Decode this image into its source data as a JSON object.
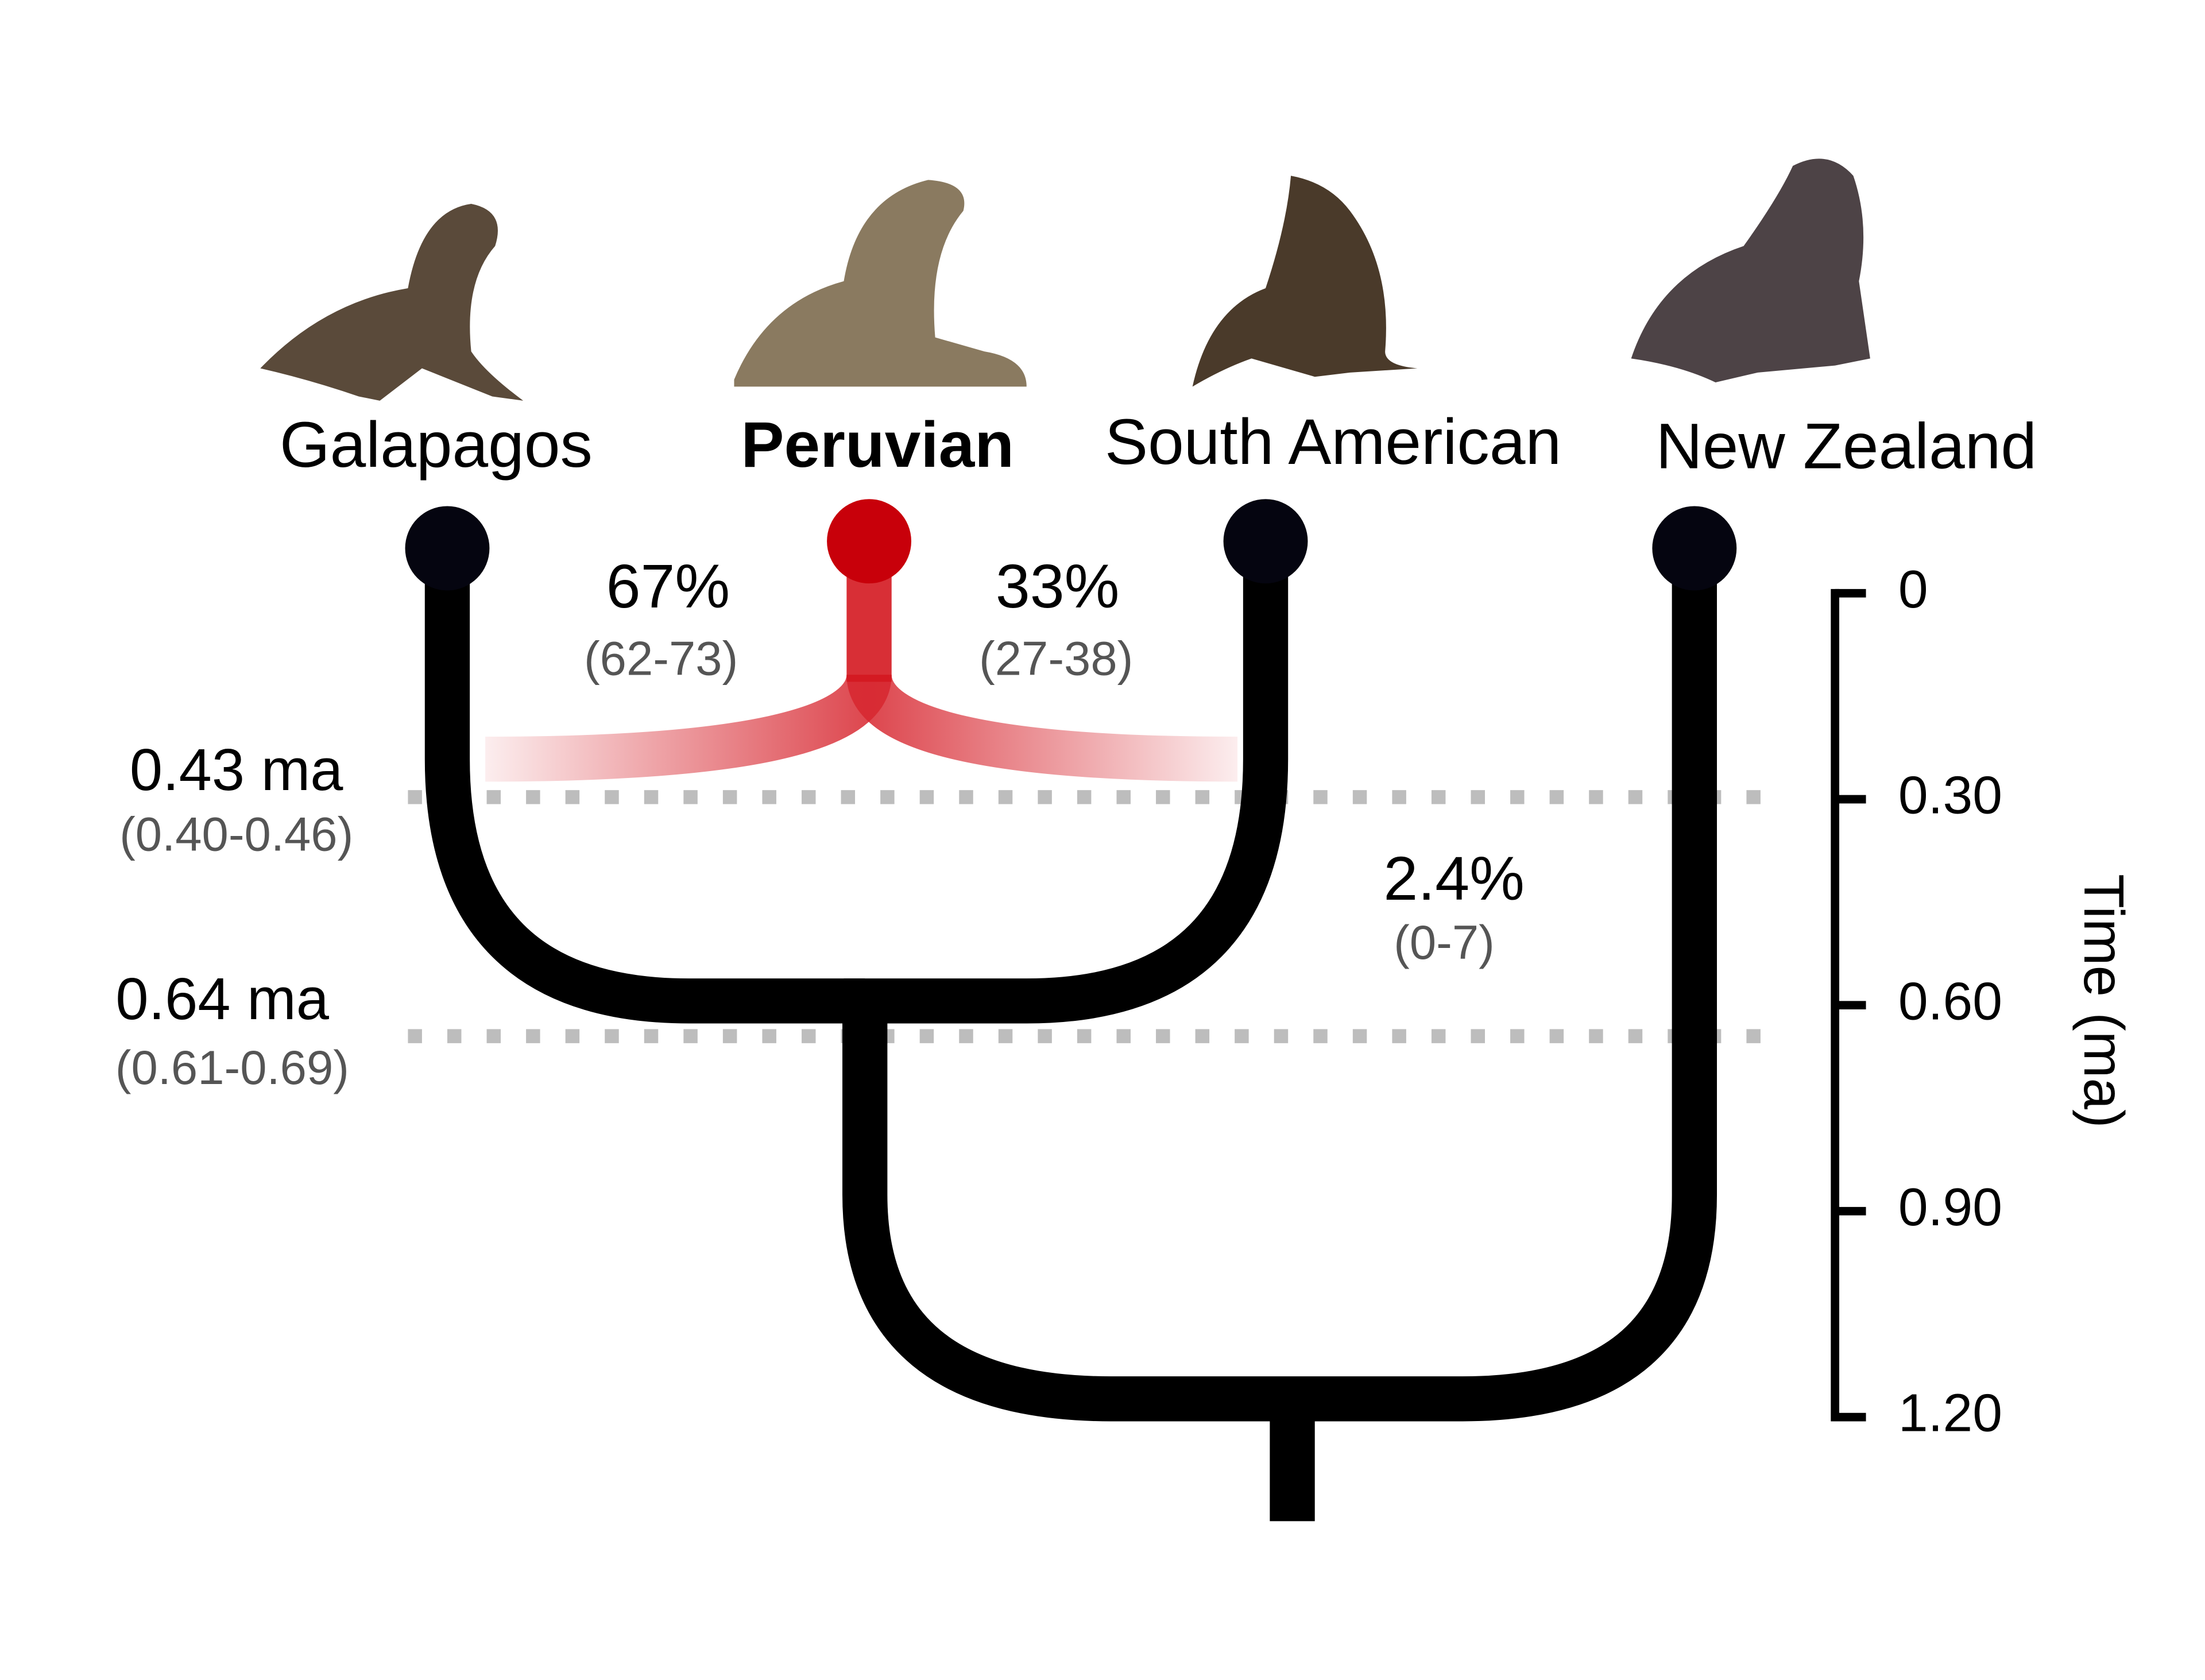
{
  "species": [
    "Galapagos",
    "Peruvian",
    "South American",
    "New Zealand"
  ],
  "admixture": [
    {
      "value": "67%",
      "range": "(62-73)"
    },
    {
      "value": "33%",
      "range": "(27-38)"
    },
    {
      "value": "2.4%",
      "range": "(0-7)"
    }
  ],
  "divergence": [
    {
      "time": "0.43 ma",
      "range": "(0.40-0.46)"
    },
    {
      "time": "0.64 ma",
      "range": "(0.61-0.69)"
    }
  ],
  "axis": {
    "title": "Time (ma)",
    "ticks": [
      0,
      {
        "value": 0.3,
        "label": "0.30"
      },
      {
        "value": 0.6,
        "label": "0.60"
      },
      {
        "value": 0.9,
        "label": "0.90"
      },
      {
        "value": 1.2,
        "label": "1.20"
      }
    ]
  }
}
